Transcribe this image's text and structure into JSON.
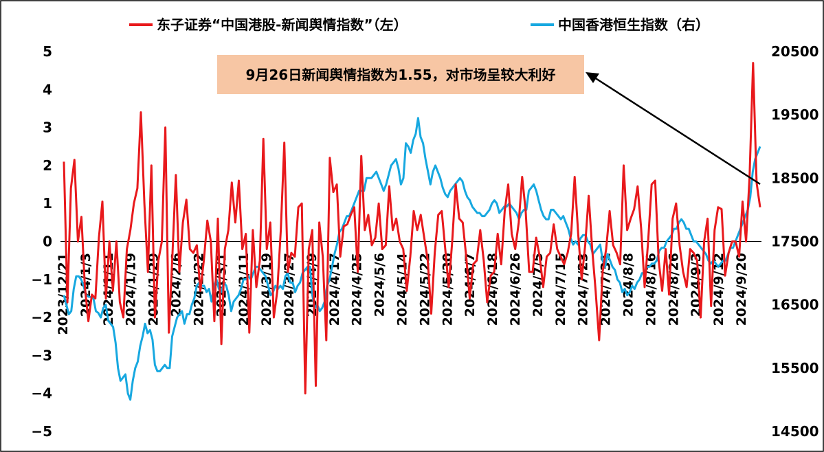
{
  "chart_data": {
    "type": "line",
    "title": "",
    "legend": {
      "placement": "top",
      "entries": [
        {
          "name": "东子证券“中国港股-新闻舆情指数”（左）",
          "color": "#e8191c"
        },
        {
          "name": "中国香港恒生指数（右）",
          "color": "#17a8e0"
        }
      ]
    },
    "annotation": {
      "text": "9月26日新闻舆情指数为1.55，对市场呈较大利好",
      "background": "#f7c6a4",
      "arrow_color": "#000000"
    },
    "left_axis": {
      "min": -5,
      "max": 5,
      "ticks": [
        "5",
        "4",
        "3",
        "2",
        "1",
        "0",
        "−1",
        "−2",
        "−3",
        "−4",
        "−5"
      ]
    },
    "right_axis": {
      "min": 14500,
      "max": 20500,
      "ticks": [
        "20500",
        "19500",
        "18500",
        "17500",
        "16500",
        "15500",
        "14500"
      ]
    },
    "x_tick_labels": [
      "2023/12/21",
      "2024/1/3",
      "2024/1/11",
      "2024/1/19",
      "2024/1/29",
      "2024/2/6",
      "2024/2/22",
      "2024/3/1",
      "2024/3/11",
      "2024/3/19",
      "2024/3/27",
      "2024/4/9",
      "2024/4/17",
      "2024/4/25",
      "2024/5/6",
      "2024/5/14",
      "2024/5/22",
      "2024/5/30",
      "2024/6/7",
      "2024/6/18",
      "2024/6/26",
      "2024/7/5",
      "2024/7/15",
      "2024/7/23",
      "2024/7/31",
      "2024/8/8",
      "2024/8/16",
      "2024/8/26",
      "2024/9/3",
      "2024/9/12",
      "2024/9/20"
    ],
    "series": [
      {
        "name": "东子证券“中国港股-新闻舆情指数”（左）",
        "axis": "left",
        "color": "#e8191c",
        "values": [
          2.1,
          -1.6,
          1.4,
          2.15,
          0,
          0.65,
          -1.2,
          -2.1,
          -1.4,
          -1.5,
          0.1,
          1.05,
          -1.5,
          0,
          -1.3,
          0,
          -1.6,
          -2.0,
          -0.2,
          0.3,
          1.0,
          1.4,
          3.4,
          1.0,
          -0.8,
          2.0,
          -2.0,
          -0.5,
          0,
          3.0,
          -2.4,
          -0.4,
          1.75,
          -0.8,
          0.5,
          1.1,
          -0.2,
          -0.3,
          -0.1,
          -1.3,
          -0.5,
          0.55,
          0,
          -2.1,
          0.6,
          -2.7,
          -0.2,
          0.3,
          1.55,
          0.5,
          1.6,
          -0.2,
          0.2,
          -2.4,
          0.3,
          -1.2,
          -0.5,
          2.7,
          -0.2,
          0.5,
          -2.0,
          -1.3,
          0.3,
          2.6,
          -0.8,
          -0.3,
          -0.4,
          0.9,
          1.0,
          -4.0,
          -0.2,
          0.3,
          -3.8,
          0.5,
          -0.4,
          -2.6,
          2.2,
          1.3,
          1.5,
          -0.4,
          0.4,
          0.45,
          0.7,
          0.9,
          -0.8,
          2.25,
          0.3,
          0.7,
          -0.1,
          0.1,
          1.0,
          -0.2,
          -0.1,
          1.45,
          0.3,
          0.6,
          0,
          -0.2,
          -1.3,
          -0.4,
          0.8,
          0.3,
          0.7,
          0.1,
          -0.5,
          -1.9,
          -0.3,
          0.7,
          0.8,
          -0.2,
          -1.2,
          0,
          1.5,
          0.6,
          0.5,
          -0.4,
          -1.5,
          -0.6,
          -0.5,
          0.3,
          -0.5,
          -1.6,
          -0.9,
          -0.8,
          0.2,
          -0.6,
          0.8,
          1.5,
          0.2,
          -0.2,
          0.5,
          1.7,
          0.8,
          -0.8,
          -0.8,
          0.1,
          -0.4,
          -1.2,
          -0.4,
          -0.3,
          0.45,
          -0.2,
          -0.4,
          -0.6,
          -0.3,
          0.2,
          1.7,
          0.2,
          -1.0,
          -0.1,
          1.2,
          -0.2,
          -1.3,
          -2.6,
          -0.8,
          -0.2,
          0.8,
          -0.1,
          -0.3,
          -0.6,
          2.0,
          0.3,
          0.6,
          0.85,
          1.45,
          0.35,
          -1.2,
          0,
          1.5,
          1.6,
          -0.5,
          -1.3,
          -0.2,
          -1.4,
          0.6,
          1.0,
          -0.1,
          -0.8,
          -1.2,
          -0.2,
          -0.3,
          -0.5,
          -2.0,
          0,
          0.6,
          -1.7,
          0.3,
          0.9,
          0.85,
          -0.9,
          -0.3,
          0,
          0,
          -0.4,
          1.05,
          0,
          1.7,
          4.7,
          1.55,
          0.9
        ]
      },
      {
        "name": "中国香港恒生指数（右）",
        "axis": "right",
        "color": "#17a8e0",
        "values": [
          16650,
          16500,
          16350,
          16400,
          16750,
          16950,
          16950,
          16900,
          16800,
          16650,
          16630,
          16620,
          16600,
          16400,
          16370,
          16300,
          16450,
          16500,
          16250,
          16200,
          16150,
          15900,
          15500,
          15300,
          15350,
          15400,
          15100,
          15000,
          15300,
          15500,
          15600,
          15850,
          16000,
          16200,
          16050,
          16100,
          15950,
          15550,
          15450,
          15450,
          15500,
          15550,
          15500,
          15500,
          16000,
          16150,
          16300,
          16350,
          16400,
          16200,
          16350,
          16350,
          16500,
          16600,
          16800,
          16850,
          16800,
          16800,
          16700,
          16750,
          16550,
          16800,
          16900,
          16750,
          16700,
          16850,
          16800,
          16650,
          16400,
          16550,
          16600,
          16650,
          16750,
          16900,
          16900,
          16950,
          16900,
          17000,
          17100,
          17100,
          17050,
          17000,
          16950,
          16800,
          16650,
          16700,
          16800,
          16750,
          16800,
          16750,
          16950,
          17000,
          16850,
          16850,
          16700,
          16800,
          16850,
          17000,
          17050,
          17100,
          17100,
          16650,
          16450,
          16500,
          16400,
          16450,
          16550,
          16800,
          16900,
          17100,
          17300,
          17450,
          17650,
          17700,
          17800,
          17900,
          17900,
          18000,
          18100,
          18200,
          18300,
          18300,
          18300,
          18500,
          18500,
          18500,
          18550,
          18600,
          18500,
          18400,
          18300,
          18400,
          18550,
          18700,
          18750,
          18800,
          18650,
          18400,
          18500,
          19050,
          19000,
          18900,
          19100,
          19200,
          19450,
          19150,
          19050,
          18800,
          18600,
          18400,
          18600,
          18700,
          18600,
          18500,
          18350,
          18250,
          18200,
          18300,
          18350,
          18400,
          18450,
          18500,
          18450,
          18300,
          18200,
          18150,
          18050,
          18000,
          17950,
          17950,
          17900,
          17900,
          17950,
          18000,
          18100,
          18150,
          18100,
          17950,
          18000,
          18050,
          18050,
          18100,
          18050,
          18000,
          17950,
          17850,
          17950,
          18000,
          18000,
          18300,
          18350,
          18400,
          18300,
          18150,
          18000,
          17900,
          17850,
          17850,
          18000,
          18000,
          17950,
          17900,
          17850,
          17900,
          17800,
          17700,
          17550,
          17450,
          17500,
          17450,
          17550,
          17600,
          17600,
          17500,
          17450,
          17300,
          17350,
          17400,
          17450,
          17200,
          17100,
          17300,
          17200,
          17100,
          17050,
          16900,
          16850,
          16700,
          16750,
          16650,
          16700,
          16800,
          16750,
          16850,
          16900,
          17000,
          17000,
          17100,
          17100,
          17150,
          17150,
          17200,
          17350,
          17400,
          17400,
          17500,
          17550,
          17600,
          17700,
          17700,
          17800,
          17850,
          17800,
          17700,
          17700,
          17600,
          17500,
          17500,
          17450,
          17400,
          17350,
          17300,
          17200,
          17150,
          17200,
          17150,
          17100,
          17150,
          17200,
          17200,
          17300,
          17400,
          17400,
          17500,
          17600,
          17700,
          17800,
          17900,
          18000,
          18200,
          18600,
          18800,
          18900,
          19000
        ]
      }
    ]
  }
}
